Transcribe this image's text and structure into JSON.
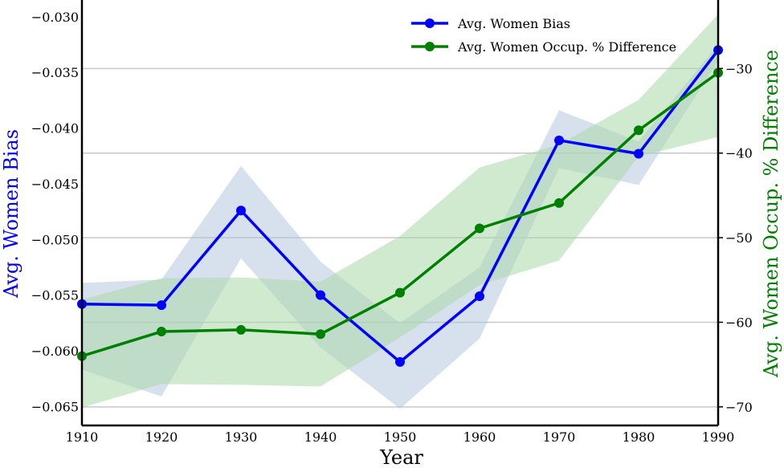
{
  "chart_data": {
    "type": "line",
    "xlabel": "Year",
    "ylabel_left": "Avg. Women Bias",
    "ylabel_right": "Avg. Women Occup. % Difference",
    "ylabel_left_color": "#0000ff",
    "ylabel_right_color": "#008000",
    "x": [
      1910,
      1920,
      1930,
      1940,
      1950,
      1960,
      1970,
      1980,
      1990
    ],
    "xlim": [
      1910,
      1990
    ],
    "x_ticks": [
      "1910",
      "1920",
      "1930",
      "1940",
      "1950",
      "1960",
      "1970",
      "1980",
      "1990"
    ],
    "ylim_left": [
      -0.0667,
      -0.0285
    ],
    "ylim_right": [
      -72.2,
      -21.9
    ],
    "y_ticks_left": [
      "−0.030",
      "−0.035",
      "−0.040",
      "−0.045",
      "−0.050",
      "−0.055",
      "−0.060",
      "−0.065"
    ],
    "y_ticks_left_values": [
      -0.03,
      -0.035,
      -0.04,
      -0.045,
      -0.05,
      -0.055,
      -0.06,
      -0.065
    ],
    "y_ticks_right": [
      "−30",
      "−40",
      "−50",
      "−60",
      "−70"
    ],
    "y_ticks_right_values": [
      -30,
      -40,
      -50,
      -60,
      -70
    ],
    "grid": "horizontal, right axis",
    "legend_position": "top-right",
    "series": [
      {
        "name": "Avg. Women Bias",
        "axis": "left",
        "color": "#0000ff",
        "band_color": "#b0c4de",
        "values": [
          -0.0558,
          -0.0559,
          -0.0474,
          -0.055,
          -0.061,
          -0.0551,
          -0.0411,
          -0.0423,
          -0.033
        ],
        "band_lower": [
          -0.0617,
          -0.0641,
          -0.0517,
          -0.0597,
          -0.0652,
          -0.0589,
          -0.0436,
          -0.0451,
          -0.034
        ],
        "band_upper": [
          -0.0539,
          -0.0536,
          -0.0434,
          -0.052,
          -0.0575,
          -0.0525,
          -0.0384,
          -0.0412,
          -0.0325
        ]
      },
      {
        "name": "Avg. Women Occup. % Difference",
        "axis": "right",
        "color": "#008000",
        "band_color": "#a9d8a9",
        "values": [
          -64.0,
          -61.1,
          -60.9,
          -61.4,
          -56.5,
          -48.9,
          -45.9,
          -37.3,
          -30.5
        ],
        "band_lower": [
          -70.1,
          -67.3,
          -67.4,
          -67.6,
          -61.8,
          -55.6,
          -52.7,
          -40.4,
          -38.1
        ],
        "band_upper": [
          -57.3,
          -54.8,
          -54.7,
          -55.2,
          -49.8,
          -41.7,
          -39.0,
          -33.7,
          -23.6
        ]
      }
    ]
  }
}
